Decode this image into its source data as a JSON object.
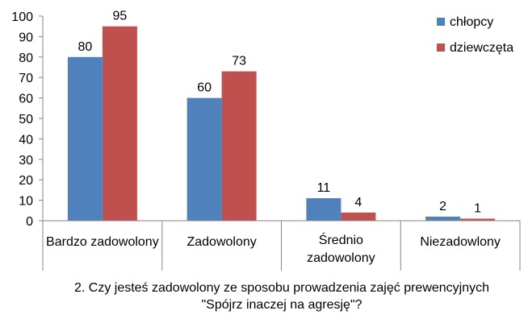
{
  "chart_data": {
    "type": "bar",
    "title": "",
    "xlabel": "2. Czy jesteś zadowolony ze sposobu prowadzenia zajęć prewencyjnych \"Spójrz inaczej na agresję\"?",
    "xlabel_lines": [
      "2. Czy jesteś zadowolony ze sposobu prowadzenia zajęć prewencyjnych",
      "\"Spójrz inaczej na agresję\"?"
    ],
    "ylabel": "",
    "ylim": [
      0,
      100
    ],
    "yticks": [
      0,
      10,
      20,
      30,
      40,
      50,
      60,
      70,
      80,
      90,
      100
    ],
    "grid": false,
    "legend_position": "top-right",
    "categories": [
      "Bardzo zadowolony",
      "Zadowolony",
      "Średnio zadowolony",
      "Niezadowlony"
    ],
    "category_lines": [
      [
        "Bardzo zadowolony"
      ],
      [
        "Zadowolony"
      ],
      [
        "Średnio",
        "zadowolony"
      ],
      [
        "Niezadowlony"
      ]
    ],
    "series": [
      {
        "name": "chłopcy",
        "color": "#4f81bd",
        "values": [
          80,
          60,
          11,
          2
        ]
      },
      {
        "name": "dziewczęta",
        "color": "#c0504d",
        "values": [
          95,
          73,
          4,
          1
        ]
      }
    ]
  }
}
